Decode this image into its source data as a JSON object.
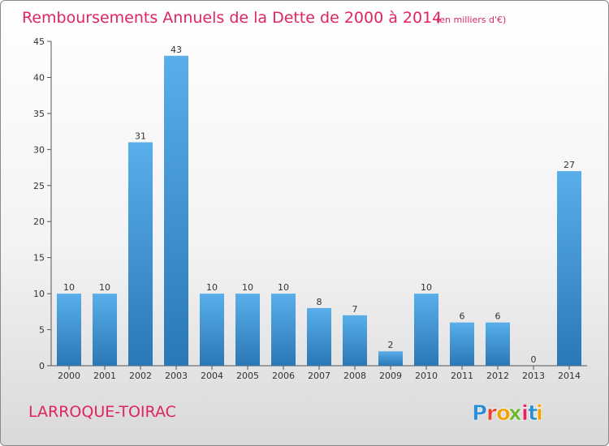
{
  "header": {
    "title": "Remboursements Annuels de la Dette de 2000 à 2014",
    "unit": "(en milliers d'€)"
  },
  "commune": "LARROQUE-TOIRAC",
  "brand": {
    "letters": [
      "P",
      "r",
      "o",
      "x",
      "i",
      "t",
      "i"
    ],
    "colors": [
      "#2c8fd6",
      "#e8442e",
      "#f2a300",
      "#6cb52d",
      "#e0245e",
      "#2c8fd6",
      "#f2a300"
    ]
  },
  "colors": {
    "bar_light": "#5aaeea",
    "bar_dark": "#2a78b6",
    "accent": "#e0245e"
  },
  "chart_data": {
    "type": "bar",
    "title": "Remboursements Annuels de la Dette de 2000 à 2014",
    "subtitle": "(en milliers d'€)",
    "categories": [
      "2000",
      "2001",
      "2002",
      "2003",
      "2004",
      "2005",
      "2006",
      "2007",
      "2008",
      "2009",
      "2010",
      "2011",
      "2012",
      "2013",
      "2014"
    ],
    "values": [
      10,
      10,
      31,
      43,
      10,
      10,
      10,
      8,
      7,
      2,
      10,
      6,
      6,
      0,
      27
    ],
    "ylim": [
      0,
      45
    ],
    "yticks": [
      0,
      5,
      10,
      15,
      20,
      25,
      30,
      35,
      40,
      45
    ],
    "grid": false,
    "legend": "none"
  }
}
